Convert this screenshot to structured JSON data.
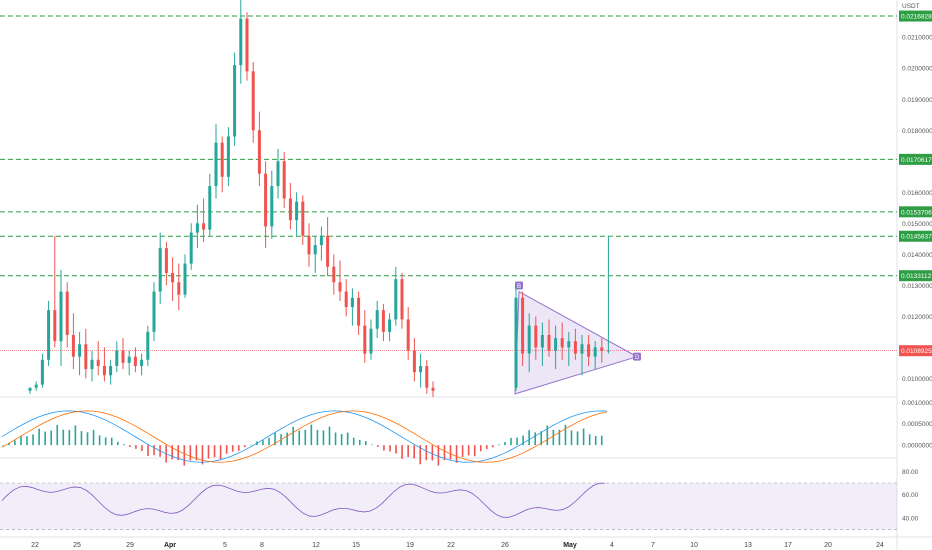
{
  "chart_data": {
    "type": "candlestick",
    "price_axis": {
      "currency": "USDT",
      "ticks": [
        "0.0210000",
        "0.0200000",
        "0.0190000",
        "0.0180000",
        "0.0160000",
        "0.0150000",
        "0.0140000",
        "0.0130000",
        "0.0120000",
        "0.0100000"
      ],
      "levels": [
        "0.0216828",
        "0.0170617",
        "0.0153706",
        "0.0145837",
        "0.0133112"
      ],
      "current_price": "0.0108925",
      "range": [
        0.0094,
        0.0222
      ]
    },
    "time_axis": [
      "22",
      "25",
      "29",
      "Apr",
      "5",
      "8",
      "12",
      "15",
      "19",
      "22",
      "26",
      "May",
      "4",
      "7",
      "10",
      "13",
      "17",
      "20",
      "24"
    ],
    "triangle_markers": [
      "B",
      "D"
    ],
    "candles_approx": [
      [
        0.0096,
        0.0097,
        0.0095,
        0.0097
      ],
      [
        0.0097,
        0.0099,
        0.0096,
        0.0098
      ],
      [
        0.0098,
        0.0108,
        0.0097,
        0.0106
      ],
      [
        0.0106,
        0.0125,
        0.0104,
        0.0122
      ],
      [
        0.0122,
        0.0146,
        0.011,
        0.0112
      ],
      [
        0.0112,
        0.0135,
        0.0104,
        0.0128
      ],
      [
        0.0128,
        0.0131,
        0.011,
        0.0114
      ],
      [
        0.0114,
        0.0121,
        0.0103,
        0.0107
      ],
      [
        0.0107,
        0.0115,
        0.0101,
        0.0111
      ],
      [
        0.0111,
        0.0116,
        0.01,
        0.0103
      ],
      [
        0.0103,
        0.0109,
        0.0099,
        0.0106
      ],
      [
        0.0106,
        0.0112,
        0.0101,
        0.0104
      ],
      [
        0.0104,
        0.011,
        0.0099,
        0.0101
      ],
      [
        0.0101,
        0.0106,
        0.0098,
        0.0104
      ],
      [
        0.0104,
        0.0112,
        0.0102,
        0.0109
      ],
      [
        0.0109,
        0.0113,
        0.0103,
        0.0105
      ],
      [
        0.0105,
        0.0109,
        0.0101,
        0.0107
      ],
      [
        0.0107,
        0.011,
        0.0102,
        0.0104
      ],
      [
        0.0104,
        0.0108,
        0.0101,
        0.0106
      ],
      [
        0.0106,
        0.0117,
        0.0104,
        0.0115
      ],
      [
        0.0115,
        0.0131,
        0.0112,
        0.0128
      ],
      [
        0.0128,
        0.0147,
        0.0124,
        0.0142
      ],
      [
        0.0142,
        0.0144,
        0.013,
        0.0134
      ],
      [
        0.0134,
        0.0139,
        0.0125,
        0.0131
      ],
      [
        0.0131,
        0.0137,
        0.0122,
        0.0127
      ],
      [
        0.0127,
        0.014,
        0.0126,
        0.0137
      ],
      [
        0.0137,
        0.015,
        0.0135,
        0.0147
      ],
      [
        0.0147,
        0.0156,
        0.0142,
        0.015
      ],
      [
        0.015,
        0.0158,
        0.0144,
        0.0148
      ],
      [
        0.0148,
        0.0166,
        0.0146,
        0.0162
      ],
      [
        0.0162,
        0.0182,
        0.0158,
        0.0176
      ],
      [
        0.0176,
        0.0178,
        0.016,
        0.0165
      ],
      [
        0.0165,
        0.0181,
        0.0162,
        0.0178
      ],
      [
        0.0178,
        0.0205,
        0.0175,
        0.0201
      ],
      [
        0.0201,
        0.0222,
        0.0195,
        0.0216
      ],
      [
        0.0216,
        0.0218,
        0.0196,
        0.0199
      ],
      [
        0.0199,
        0.0202,
        0.0176,
        0.018
      ],
      [
        0.018,
        0.0186,
        0.0162,
        0.0166
      ],
      [
        0.0166,
        0.017,
        0.0142,
        0.0149
      ],
      [
        0.0149,
        0.0167,
        0.0145,
        0.0162
      ],
      [
        0.0162,
        0.0174,
        0.0158,
        0.017
      ],
      [
        0.017,
        0.0173,
        0.0155,
        0.0158
      ],
      [
        0.0158,
        0.0163,
        0.0148,
        0.0151
      ],
      [
        0.0151,
        0.016,
        0.0146,
        0.0157
      ],
      [
        0.0157,
        0.0159,
        0.0143,
        0.0146
      ],
      [
        0.0146,
        0.015,
        0.0136,
        0.014
      ],
      [
        0.014,
        0.0146,
        0.0134,
        0.0143
      ],
      [
        0.0143,
        0.0149,
        0.0138,
        0.0146
      ],
      [
        0.0146,
        0.0152,
        0.0133,
        0.0136
      ],
      [
        0.0136,
        0.014,
        0.0127,
        0.0131
      ],
      [
        0.0131,
        0.0138,
        0.0125,
        0.0128
      ],
      [
        0.0128,
        0.0132,
        0.012,
        0.0123
      ],
      [
        0.0123,
        0.0129,
        0.0117,
        0.0126
      ],
      [
        0.0126,
        0.0128,
        0.0114,
        0.0117
      ],
      [
        0.0117,
        0.0122,
        0.0105,
        0.0108
      ],
      [
        0.0108,
        0.0119,
        0.0106,
        0.0116
      ],
      [
        0.0116,
        0.0125,
        0.0113,
        0.0122
      ],
      [
        0.0122,
        0.0124,
        0.0112,
        0.0115
      ],
      [
        0.0115,
        0.0121,
        0.0112,
        0.0119
      ],
      [
        0.0119,
        0.0136,
        0.0117,
        0.0132
      ],
      [
        0.0132,
        0.0134,
        0.0116,
        0.0119
      ],
      [
        0.0119,
        0.0123,
        0.0106,
        0.0109
      ],
      [
        0.0109,
        0.0113,
        0.0099,
        0.0102
      ],
      [
        0.0102,
        0.0108,
        0.0097,
        0.0104
      ],
      [
        0.0104,
        0.0106,
        0.0095,
        0.0097
      ],
      [
        0.0097,
        0.0099,
        0.0094,
        0.0096
      ]
    ],
    "triangle_candles_approx": [
      [
        0.0097,
        0.013,
        0.0096,
        0.0126
      ],
      [
        0.0126,
        0.0128,
        0.0104,
        0.0108
      ],
      [
        0.0108,
        0.0121,
        0.0102,
        0.0117
      ],
      [
        0.0117,
        0.012,
        0.0106,
        0.011
      ],
      [
        0.011,
        0.0118,
        0.0104,
        0.0114
      ],
      [
        0.0114,
        0.0119,
        0.0107,
        0.0109
      ],
      [
        0.0109,
        0.0117,
        0.0103,
        0.0113
      ],
      [
        0.0113,
        0.0118,
        0.0106,
        0.011
      ],
      [
        0.011,
        0.0115,
        0.0104,
        0.0112
      ],
      [
        0.0112,
        0.0116,
        0.0106,
        0.0108
      ],
      [
        0.0108,
        0.0114,
        0.0101,
        0.0111
      ],
      [
        0.0111,
        0.0114,
        0.0104,
        0.0107
      ],
      [
        0.0107,
        0.0112,
        0.0103,
        0.011
      ],
      [
        0.011,
        0.0113,
        0.0105,
        0.0109
      ],
      [
        0.0109,
        0.0146,
        0.0108,
        0.0109
      ]
    ],
    "macd_axis": {
      "ticks": [
        "0.0010000",
        "0.0005000",
        "0.0000000"
      ]
    },
    "rsi_axis": {
      "ticks": [
        "80.00",
        "60.00",
        "40.00"
      ],
      "band": [
        30,
        70
      ]
    },
    "colors": {
      "up": "#26a69a",
      "down": "#ef5350",
      "level": "#2e9e44",
      "triangle": "#9575cd",
      "current": "#ef5350",
      "rsi": "#7e57c2",
      "macd": "#2196f3",
      "signal": "#ff6d00"
    }
  }
}
